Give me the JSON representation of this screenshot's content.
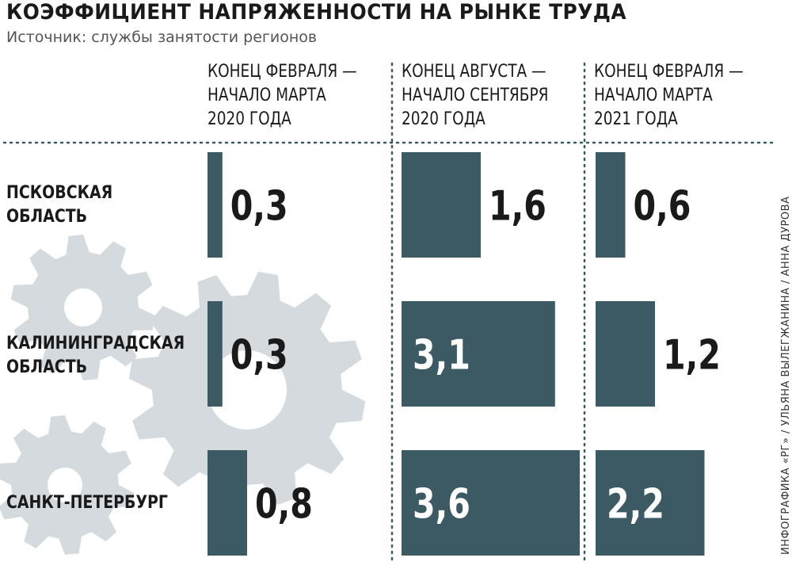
{
  "chart_data": {
    "type": "bar",
    "title": "КОЭФФИЦИЕНТ НАПРЯЖЕННОСТИ НА РЫНКЕ ТРУДА",
    "subtitle": "Источник: службы занятости регионов",
    "categories": [
      "ПСКОВСКАЯ ОБЛАСТЬ",
      "КАЛИНИНГРАДСКАЯ ОБЛАСТЬ",
      "САНКТ-ПЕТЕРБУРГ"
    ],
    "category_lines": [
      [
        "ПСКОВСКАЯ",
        "ОБЛАСТЬ"
      ],
      [
        "КАЛИНИНГРАДСКАЯ",
        "ОБЛАСТЬ"
      ],
      [
        "САНКТ-ПЕТЕРБУРГ"
      ]
    ],
    "series": [
      {
        "name": "КОНЕЦ ФЕВРАЛЯ — НАЧАЛО МАРТА 2020 ГОДА",
        "header_lines": [
          "КОНЕЦ ФЕВРАЛЯ —",
          "НАЧАЛО МАРТА",
          "2020 ГОДА"
        ],
        "values": [
          0.3,
          0.3,
          0.8
        ],
        "labels": [
          "0,3",
          "0,3",
          "0,8"
        ]
      },
      {
        "name": "КОНЕЦ АВГУСТА — НАЧАЛО СЕНТЯБРЯ 2020 ГОДА",
        "header_lines": [
          "КОНЕЦ АВГУСТА —",
          "НАЧАЛО СЕНТЯБРЯ",
          "2020 ГОДА"
        ],
        "values": [
          1.6,
          3.1,
          3.6
        ],
        "labels": [
          "1,6",
          "3,1",
          "3,6"
        ]
      },
      {
        "name": "КОНЕЦ ФЕВРАЛЯ — НАЧАЛО МАРТА 2021 ГОДА",
        "header_lines": [
          "КОНЕЦ ФЕВРАЛЯ —",
          "НАЧАЛО МАРТА",
          "2021 ГОДА"
        ],
        "values": [
          0.6,
          1.2,
          2.2
        ],
        "labels": [
          "0,6",
          "1,2",
          "2,2"
        ]
      }
    ],
    "xlim": [
      0,
      3.6
    ],
    "grid": false,
    "colors": {
      "bar": "#3b5a63",
      "gear": "#d4dadd",
      "label_dark": "#1a1a1a",
      "label_light": "#ffffff"
    }
  },
  "credit": "ИНФОГРАФИКА «РГ» / УЛЬЯНА ВЫЛЕГЖАНИНА / АННА ДУРОВА"
}
